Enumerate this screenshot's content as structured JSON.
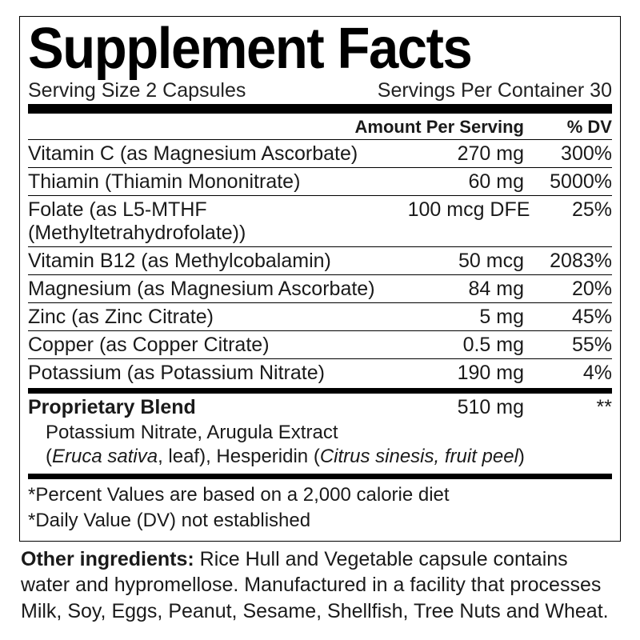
{
  "title": "Supplement Facts",
  "serving_size_label": "Serving Size 2 Capsules",
  "servings_per_container_label": "Servings Per Container 30",
  "headers": {
    "amount": "Amount Per Serving",
    "dv": "% DV"
  },
  "rows": [
    {
      "name": "Vitamin C (as Magnesium Ascorbate)",
      "amount": "270 mg",
      "dv": "300%"
    },
    {
      "name": "Thiamin (Thiamin Mononitrate)",
      "amount": "60 mg",
      "dv": "5000%"
    },
    {
      "name": "Folate (as L5-MTHF (Methyltetrahydrofolate))",
      "amount": "100 mcg DFE",
      "dv": "25%"
    },
    {
      "name": "Vitamin B12 (as Methylcobalamin)",
      "amount": "50 mcg",
      "dv": "2083%"
    },
    {
      "name": "Magnesium (as Magnesium Ascorbate)",
      "amount": "84 mg",
      "dv": "20%"
    },
    {
      "name": "Zinc (as Zinc Citrate)",
      "amount": "5 mg",
      "dv": "45%"
    },
    {
      "name": "Copper (as Copper Citrate)",
      "amount": "0.5 mg",
      "dv": "55%"
    },
    {
      "name": "Potassium (as Potassium Nitrate)",
      "amount": "190 mg",
      "dv": "4%"
    }
  ],
  "blend": {
    "label": "Proprietary Blend",
    "amount": "510 mg",
    "dv": "**",
    "line1_a": "Potassium Nitrate, Arugula Extract",
    "line2_a": "(",
    "line2_i1": "Eruca sativa",
    "line2_b": ", leaf), Hesperidin (",
    "line2_i2": "Citrus sinesis, fruit peel",
    "line2_c": ")"
  },
  "footnote1": "*Percent Values are based on a 2,000 calorie diet",
  "footnote2": "*Daily Value (DV) not established",
  "other_label": "Other ingredients:",
  "other_text": " Rice Hull and Vegetable capsule contains water and hypromellose. Manufactured in a facility that processes Milk, Soy, Eggs, Peanut, Sesame, Shellfish, Tree Nuts and Wheat.",
  "colors": {
    "text": "#1a1a1a",
    "rule": "#000000",
    "background": "#ffffff"
  }
}
